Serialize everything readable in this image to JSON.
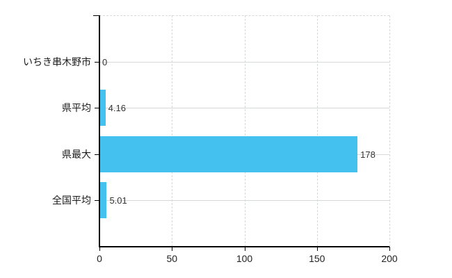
{
  "chart_data": {
    "type": "bar",
    "orientation": "horizontal",
    "title": "",
    "xlabel": "",
    "ylabel": "",
    "categories": [
      "いちき串木野市",
      "県平均",
      "県最大",
      "全国平均"
    ],
    "values": [
      0,
      4.16,
      178,
      5.01
    ],
    "value_labels": [
      "0",
      "4.16",
      "178",
      "5.01"
    ],
    "xlim": [
      0,
      200
    ],
    "xticks": [
      0,
      50,
      100,
      150,
      200
    ],
    "xtick_labels": [
      "0",
      "50",
      "100",
      "150",
      "200"
    ],
    "grid": true,
    "legend_position": "none",
    "bar_color": "#45c1f0",
    "axis_color": "#000000",
    "grid_color": "#d6dad6",
    "text_color": "#1a1a1a"
  }
}
